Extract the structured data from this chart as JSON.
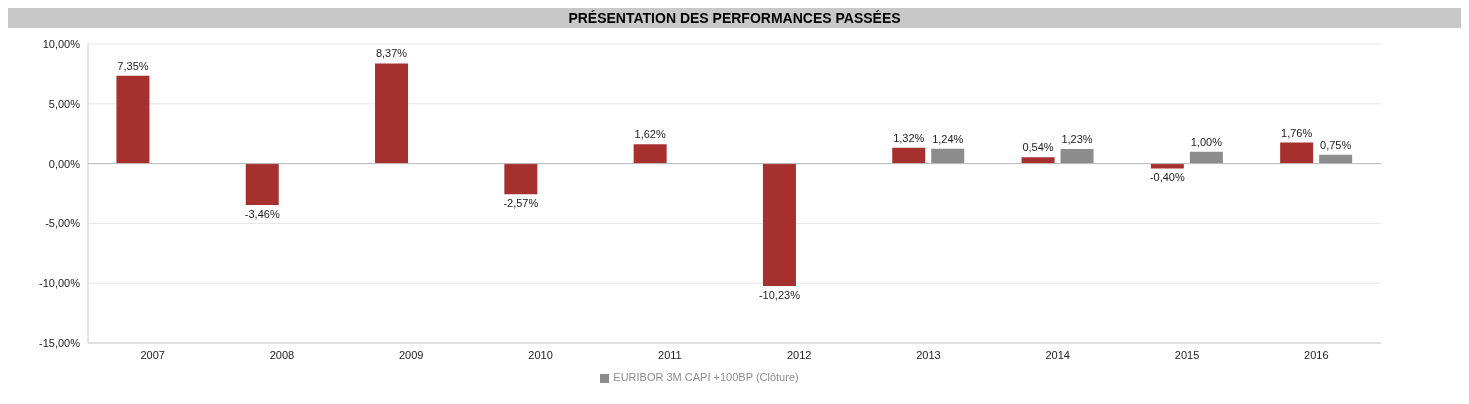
{
  "chart_data": {
    "type": "bar",
    "title": "PRÉSENTATION DES PERFORMANCES PASSÉES",
    "categories": [
      "2007",
      "2008",
      "2009",
      "2010",
      "2011",
      "2012",
      "2013",
      "2014",
      "2015",
      "2016"
    ],
    "series": [
      {
        "color": "#a5302e",
        "values": [
          7.35,
          -3.46,
          8.37,
          -2.57,
          1.62,
          -10.23,
          1.32,
          0.54,
          -0.4,
          1.76
        ],
        "value_labels": [
          "7,35%",
          "-3,46%",
          "8,37%",
          "-2,57%",
          "1,62%",
          "-10,23%",
          "1,32%",
          "0,54%",
          "-0,40%",
          "1,76%"
        ]
      },
      {
        "name": "EURIBOR 3M CAPI +100BP (Clôture)",
        "color": "#8c8c8c",
        "values": [
          null,
          null,
          null,
          null,
          null,
          null,
          1.24,
          1.23,
          1.0,
          0.75
        ],
        "value_labels": [
          null,
          null,
          null,
          null,
          null,
          null,
          "1,24%",
          "1,23%",
          "1,00%",
          "0,75%"
        ]
      }
    ],
    "ylim": [
      -15,
      10
    ],
    "yticks": [
      {
        "value": -15,
        "label": "-15,00%"
      },
      {
        "value": -10,
        "label": "-10,00%"
      },
      {
        "value": -5,
        "label": "-5,00%"
      },
      {
        "value": 0,
        "label": "0,00%"
      },
      {
        "value": 5,
        "label": "5,00%"
      },
      {
        "value": 10,
        "label": "10,00%"
      }
    ],
    "grid": "y",
    "legend": "bottom"
  }
}
